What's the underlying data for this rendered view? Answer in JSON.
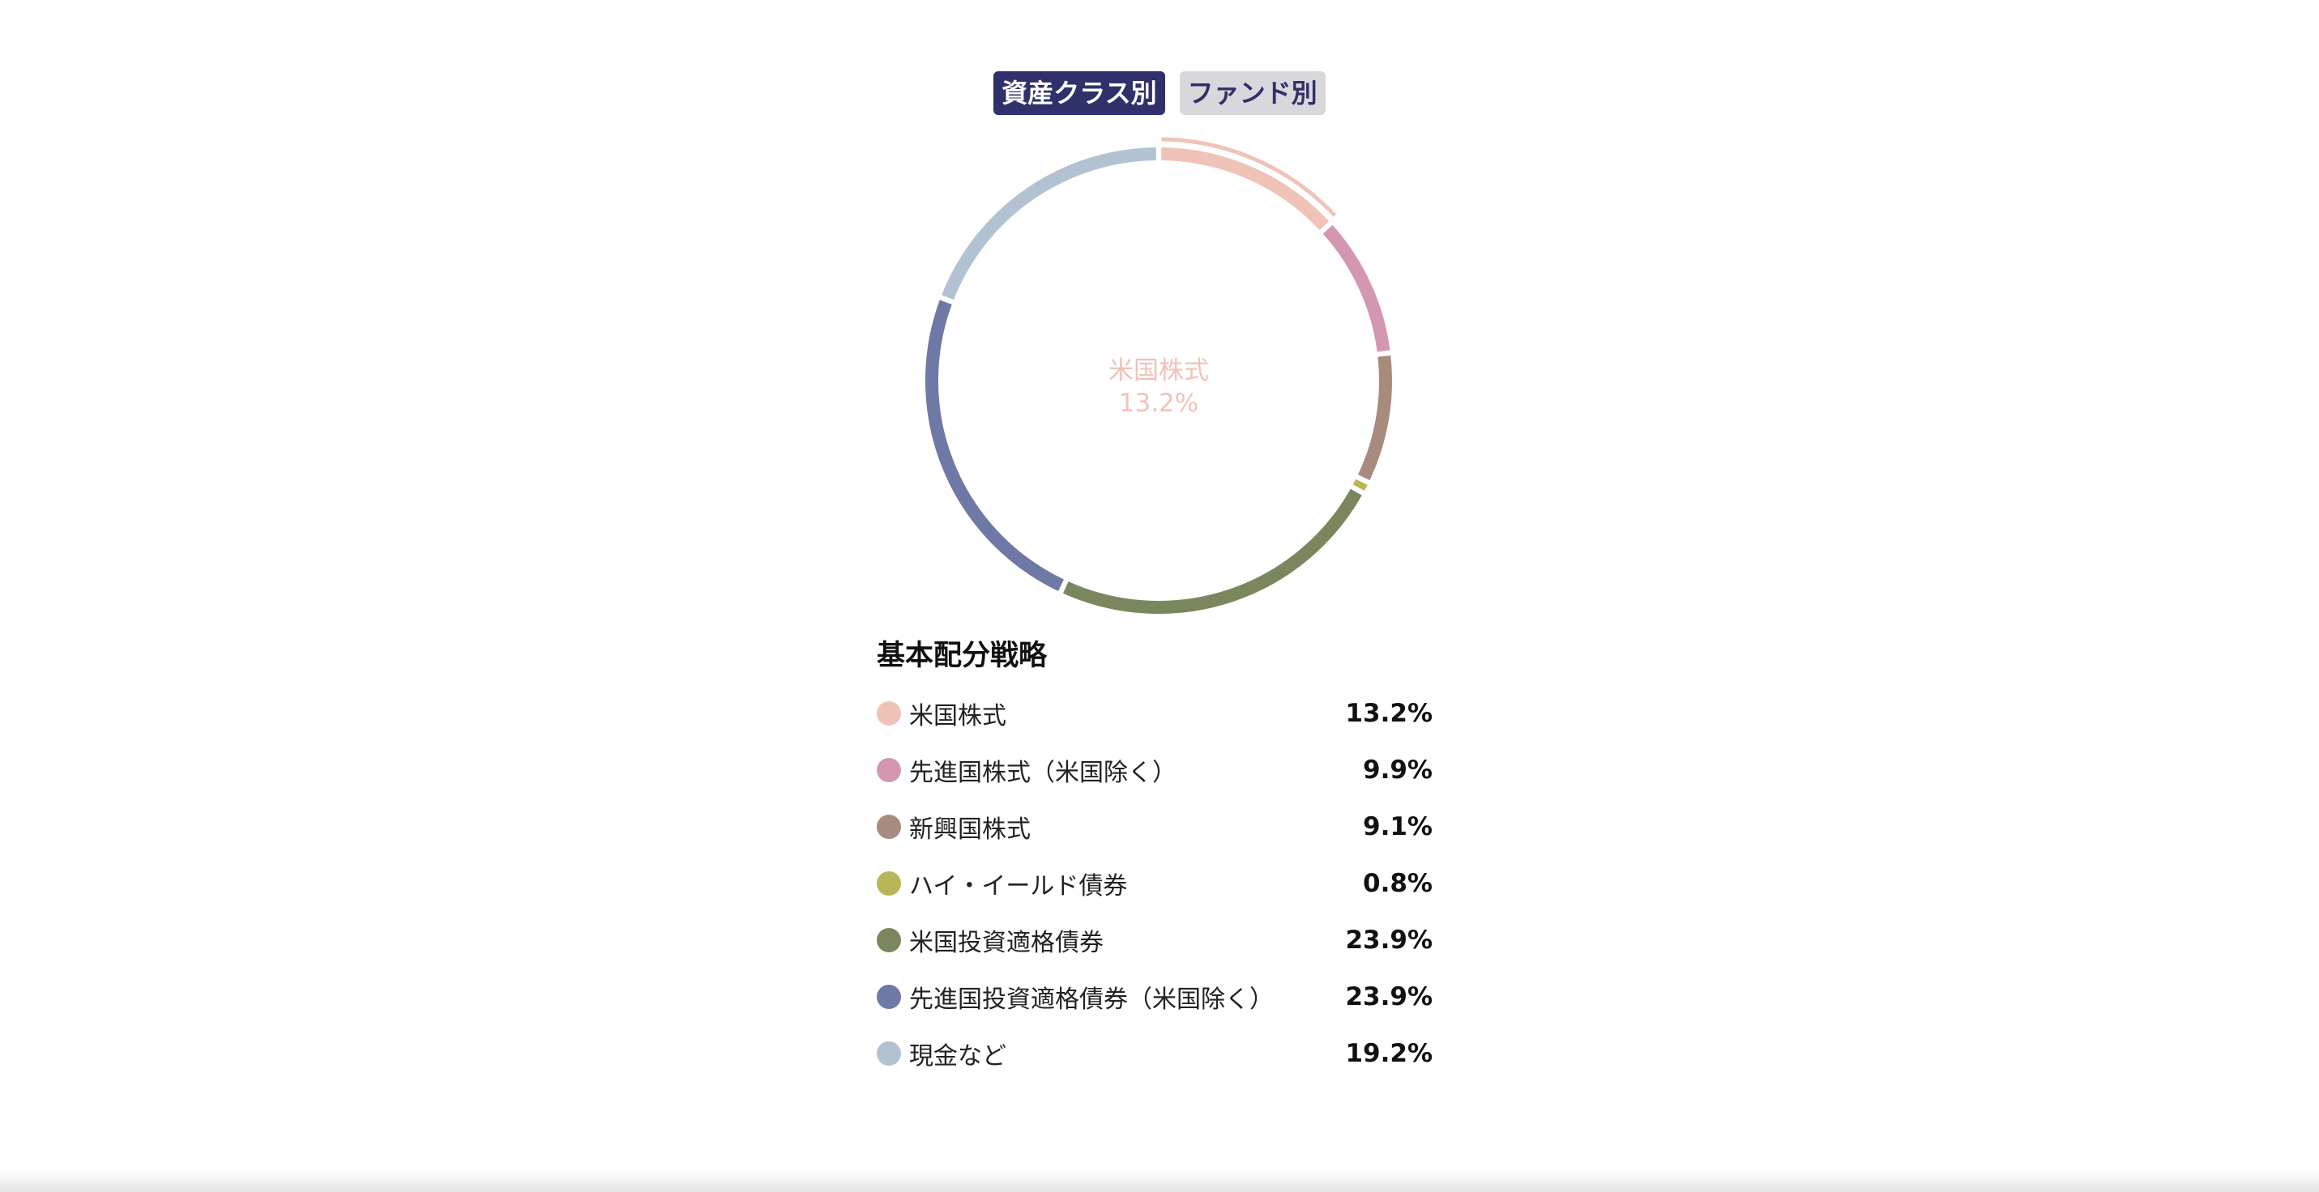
{
  "tabs": [
    {
      "label": "資産クラス別",
      "active": true
    },
    {
      "label": "ファンド別",
      "active": false
    }
  ],
  "center": {
    "label": "米国株式",
    "value": "13.2%"
  },
  "legend_title": "基本配分戦略",
  "chart_data": {
    "type": "pie",
    "style": "donut",
    "title": "基本配分戦略",
    "highlighted": "米国株式",
    "categories": [
      "米国株式",
      "先進国株式（米国除く）",
      "新興国株式",
      "ハイ・イールド債券",
      "米国投資適格債券",
      "先進国投資適格債券（米国除く）",
      "現金など"
    ],
    "values": [
      13.2,
      9.9,
      9.1,
      0.8,
      23.9,
      23.9,
      19.2
    ],
    "value_labels": [
      "13.2%",
      "9.9%",
      "9.1%",
      "0.8%",
      "23.9%",
      "23.9%",
      "19.2%"
    ],
    "colors": [
      "#efc3b8",
      "#d397b1",
      "#a98a7e",
      "#b9b558",
      "#7a875e",
      "#6f79a6",
      "#b3c2d3"
    ]
  }
}
